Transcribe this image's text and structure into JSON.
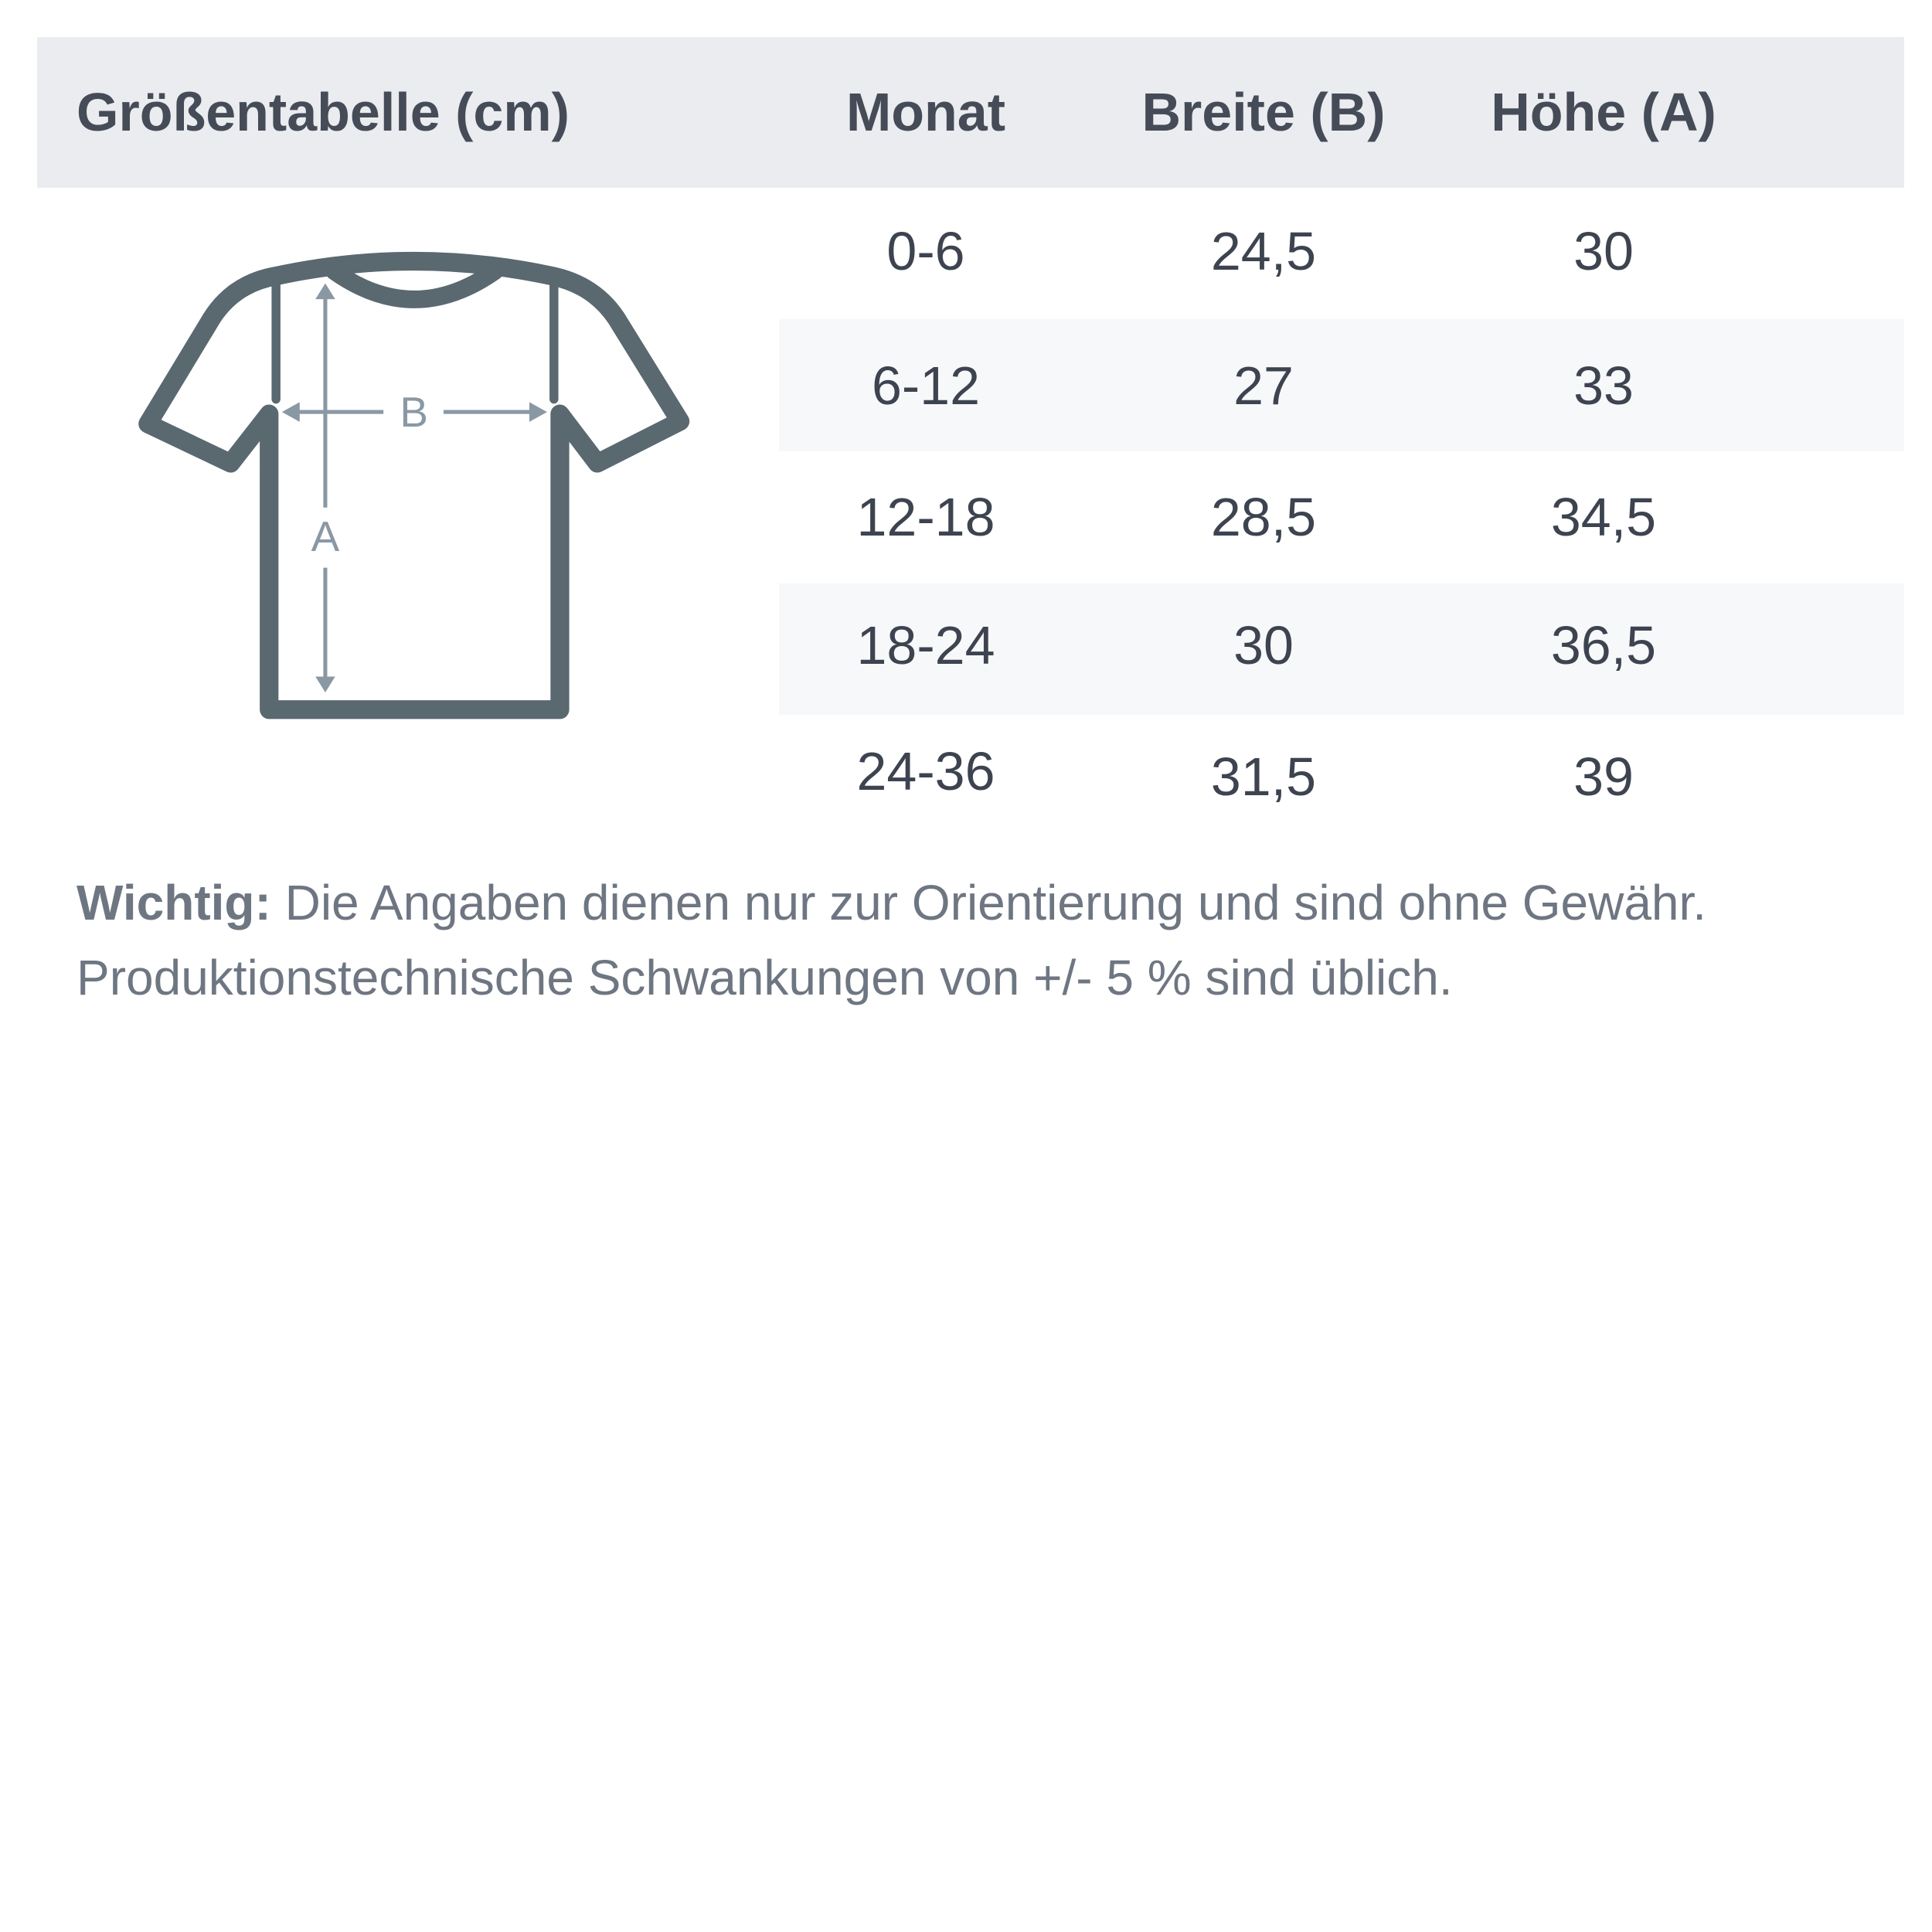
{
  "header": {
    "title": "Größentabelle (cm)",
    "columns": [
      "Monat",
      "Breite (B)",
      "Höhe (A)"
    ]
  },
  "diagram": {
    "label_width": "B",
    "label_height": "A",
    "shirt_color": "#5a6870",
    "arrow_color": "#8a98a4"
  },
  "rows": [
    {
      "month": "0-6",
      "width": "24,5",
      "height": "30"
    },
    {
      "month": "6-12",
      "width": "27",
      "height": "33"
    },
    {
      "month": "12-18",
      "width": "28,5",
      "height": "34,5"
    },
    {
      "month": "18-24",
      "width": "30",
      "height": "36,5"
    },
    {
      "month": "24-36",
      "width": "31,5",
      "height": "39"
    }
  ],
  "note": {
    "label": "Wichtig:",
    "line1": "Die Angaben dienen nur zur Orientierung und sind ohne Gewähr.",
    "line2": "Produktionstechnische Schwankungen von +/- 5 % sind üblich."
  }
}
